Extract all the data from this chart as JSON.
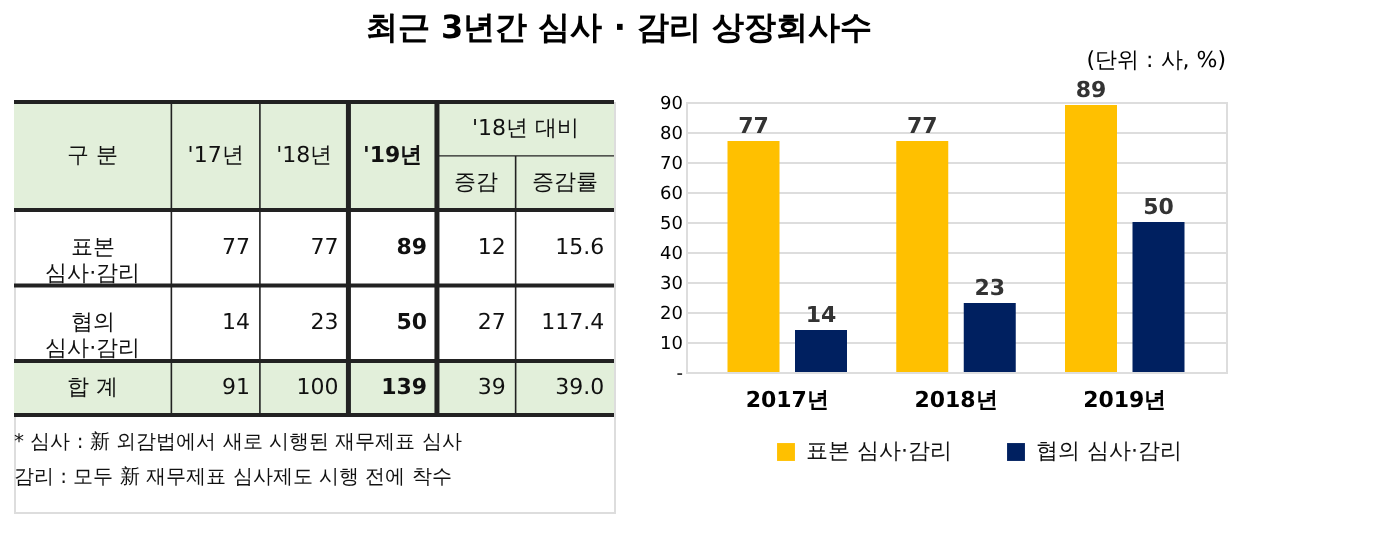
{
  "chart_data": [
    {
      "type": "other",
      "title": "최근 3년간 심사 · 감리 상장회사수",
      "categories": [
        "'17년",
        "'18년",
        "'19년",
        "증감",
        "증감률"
      ],
      "y_categories": [
        "표본\n심사·감리",
        "협의\n심사·감리",
        "합 계"
      ],
      "cell_labels": [
        [
          "77",
          "77",
          "89",
          "12",
          "15.6"
        ],
        [
          "14",
          "23",
          "50",
          "27",
          "117.4"
        ],
        [
          "91",
          "100",
          "139",
          "39",
          "39.0"
        ]
      ],
      "annotations": [
        "구 분",
        "'18년 대비",
        "* 심사 : 新 외감법에서 새로 시행된 재무제표 심사",
        "   감리 : 모두 新 재무제표 심사제도 시행 전에 착수"
      ]
    },
    {
      "type": "bar",
      "subtitle": "(단위 : 사, %)",
      "categories": [
        "2017년",
        "2018년",
        "2019년"
      ],
      "series": [
        {
          "name": "표본 심사·감리",
          "color": "#ffc000",
          "values": [
            77,
            77,
            89
          ]
        },
        {
          "name": "협의 심사·감리",
          "color": "#002060",
          "values": [
            14,
            23,
            50
          ]
        }
      ],
      "ylim": [
        0,
        90
      ],
      "yticks": [
        {
          "value": 0,
          "label": "-"
        },
        10,
        20,
        30,
        40,
        50,
        60,
        70,
        80,
        90
      ],
      "grid": "y",
      "legend": "bottom",
      "data_labels": true
    }
  ]
}
